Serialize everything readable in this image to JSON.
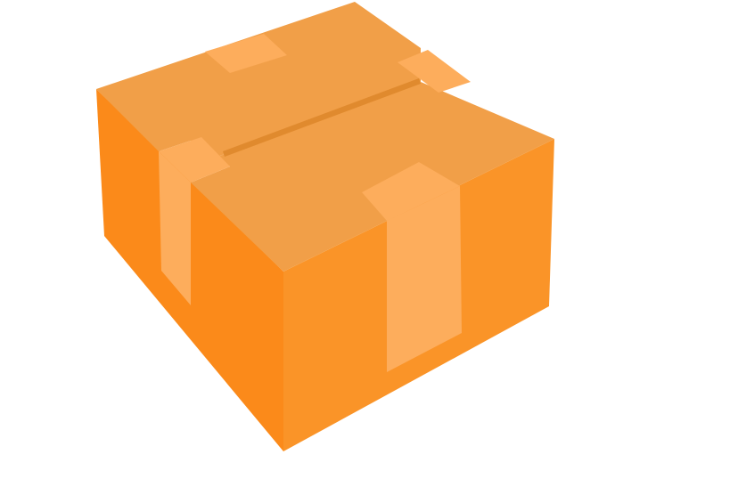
{
  "image": {
    "subject": "cardboard-box",
    "background_color": "#ffffff"
  },
  "colors": {
    "top_face": "#F19F48",
    "left_face": "#FB8A1A",
    "right_face": "#FA9428",
    "seam": "#E08A2E",
    "tape_light": "#FDAD5C",
    "tape_on_side": "#FDAD5C"
  }
}
